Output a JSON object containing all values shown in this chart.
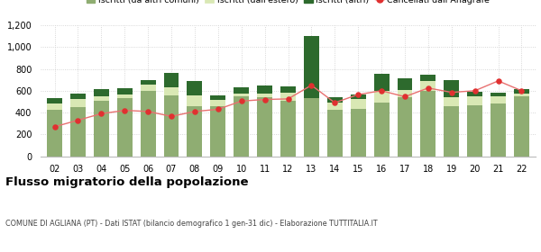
{
  "years": [
    "02",
    "03",
    "04",
    "05",
    "06",
    "07",
    "08",
    "09",
    "10",
    "11",
    "12",
    "13",
    "14",
    "15",
    "16",
    "17",
    "18",
    "19",
    "20",
    "21",
    "22"
  ],
  "iscritti_comuni": [
    425,
    450,
    510,
    535,
    600,
    555,
    455,
    460,
    545,
    540,
    510,
    535,
    425,
    430,
    490,
    540,
    600,
    460,
    470,
    480,
    545
  ],
  "iscritti_estero": [
    60,
    75,
    40,
    30,
    55,
    80,
    100,
    55,
    30,
    30,
    75,
    0,
    65,
    95,
    110,
    70,
    85,
    80,
    75,
    65,
    30
  ],
  "iscritti_altri": [
    45,
    45,
    65,
    60,
    40,
    130,
    130,
    40,
    60,
    75,
    55,
    570,
    50,
    40,
    155,
    100,
    60,
    155,
    45,
    40,
    40
  ],
  "cancellati": [
    270,
    330,
    390,
    420,
    410,
    365,
    410,
    430,
    505,
    520,
    525,
    650,
    490,
    565,
    600,
    545,
    625,
    585,
    600,
    690,
    600
  ],
  "color_comuni": "#8fad72",
  "color_estero": "#d9e8b4",
  "color_altri": "#2d6a2d",
  "color_cancellati": "#e03030",
  "color_line": "#e87070",
  "title": "Flusso migratorio della popolazione",
  "subtitle": "COMUNE DI AGLIANA (PT) - Dati ISTAT (bilancio demografico 1 gen-31 dic) - Elaborazione TUTTITALIA.IT",
  "legend_labels": [
    "Iscritti (da altri comuni)",
    "Iscritti (dall'estero)",
    "Iscritti (altri)",
    "Cancellati dall’Anagrafe"
  ],
  "ylim": [
    0,
    1200
  ],
  "yticks": [
    0,
    200,
    400,
    600,
    800,
    1000,
    1200
  ],
  "bg_color": "#ffffff",
  "grid_color": "#cccccc"
}
